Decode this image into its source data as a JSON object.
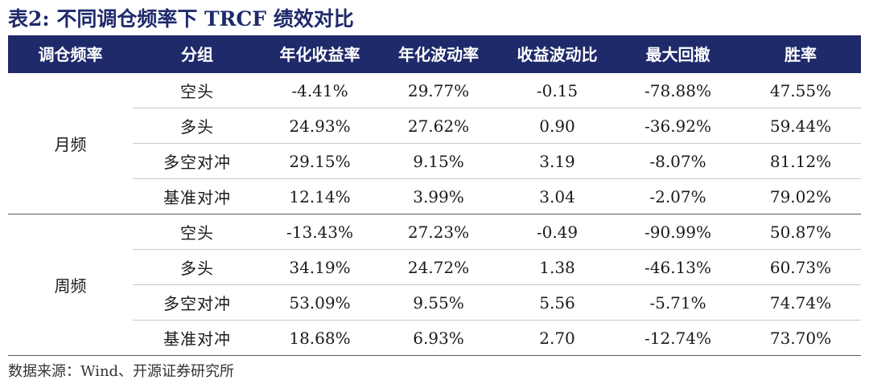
{
  "title": "表2:  不同调仓频率下 TRCF 绩效对比",
  "table": {
    "headers": [
      "调仓频率",
      "分组",
      "年化收益率",
      "年化波动率",
      "收益波动比",
      "最大回撤",
      "胜率"
    ],
    "blocks": [
      {
        "frequency": "月频",
        "rows": [
          {
            "group": "空头",
            "annual_return": "-4.41%",
            "annual_vol": "29.77%",
            "ret_vol_ratio": "-0.15",
            "max_drawdown": "-78.88%",
            "win_rate": "47.55%"
          },
          {
            "group": "多头",
            "annual_return": "24.93%",
            "annual_vol": "27.62%",
            "ret_vol_ratio": "0.90",
            "max_drawdown": "-36.92%",
            "win_rate": "59.44%"
          },
          {
            "group": "多空对冲",
            "annual_return": "29.15%",
            "annual_vol": "9.15%",
            "ret_vol_ratio": "3.19",
            "max_drawdown": "-8.07%",
            "win_rate": "81.12%"
          },
          {
            "group": "基准对冲",
            "annual_return": "12.14%",
            "annual_vol": "3.99%",
            "ret_vol_ratio": "3.04",
            "max_drawdown": "-2.07%",
            "win_rate": "79.02%"
          }
        ]
      },
      {
        "frequency": "周频",
        "rows": [
          {
            "group": "空头",
            "annual_return": "-13.43%",
            "annual_vol": "27.23%",
            "ret_vol_ratio": "-0.49",
            "max_drawdown": "-90.99%",
            "win_rate": "50.87%"
          },
          {
            "group": "多头",
            "annual_return": "34.19%",
            "annual_vol": "24.72%",
            "ret_vol_ratio": "1.38",
            "max_drawdown": "-46.13%",
            "win_rate": "60.73%"
          },
          {
            "group": "多空对冲",
            "annual_return": "53.09%",
            "annual_vol": "9.55%",
            "ret_vol_ratio": "5.56",
            "max_drawdown": "-5.71%",
            "win_rate": "74.74%"
          },
          {
            "group": "基准对冲",
            "annual_return": "18.68%",
            "annual_vol": "6.93%",
            "ret_vol_ratio": "2.70",
            "max_drawdown": "-12.74%",
            "win_rate": "73.70%"
          }
        ]
      }
    ]
  },
  "source": "数据来源：Wind、开源证券研究所",
  "colors": {
    "header_bg": "#1f2a6b",
    "title": "#1f2a6b",
    "header_text": "#ffffff"
  }
}
